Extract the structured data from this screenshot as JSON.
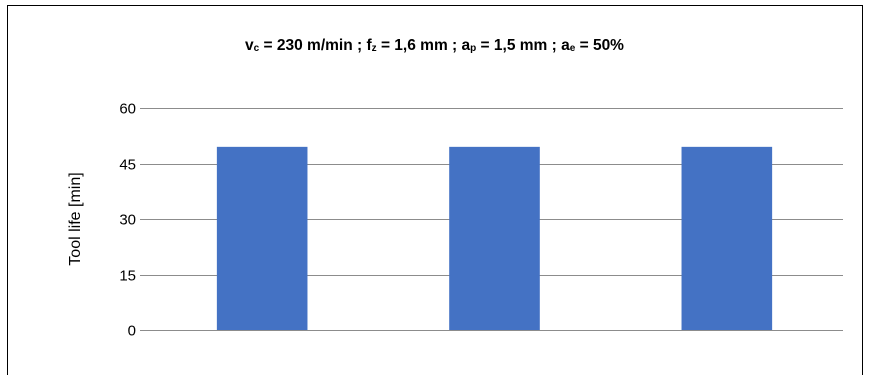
{
  "chart_data": {
    "type": "bar",
    "title_parts": {
      "vc_sym": "v",
      "vc_sub": "c",
      "vc_val": " = 230 m/min ; ",
      "fz_sym": "f",
      "fz_sub": "z",
      "fz_val": " = 1,6 mm ; ",
      "ap_sym": "a",
      "ap_sub": "p",
      "ap_val": " = 1,5 mm ; ",
      "ae_sym": "a",
      "ae_sub": "e",
      "ae_val": " = 50%"
    },
    "categories": [
      "",
      "",
      ""
    ],
    "values": [
      49.5,
      49.5,
      49.5
    ],
    "ylabel": "Tool life [min]",
    "xlabel": "",
    "ylim": [
      0,
      60
    ],
    "yticks": [
      0,
      15,
      30,
      45,
      60
    ],
    "grid": true,
    "bar_color": "#4472C4",
    "grid_color": "#8c8c8c"
  }
}
